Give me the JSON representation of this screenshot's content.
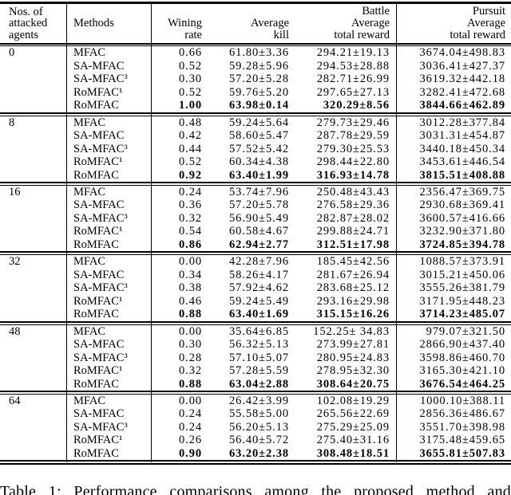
{
  "header": {
    "col1": "Nos. of\nattacked\nagents",
    "col2": "Methods",
    "col3": "Wining\nrate",
    "col4": "Average\nkill",
    "col5": "Battle\nAverage\ntotal reward",
    "col6": "Pursuit\nAverage\ntotal reward"
  },
  "table": {
    "groups": [
      {
        "attacked": "0",
        "rows": [
          {
            "method": "MFAC",
            "win": "0.66",
            "kill": "61.80±3.36",
            "battle": "294.21±19.13",
            "pursuit": "3674.04±498.83",
            "bold": false
          },
          {
            "method": "SA-MFAC",
            "win": "0.52",
            "kill": "59.28±5.96",
            "battle": "294.53±28.88",
            "pursuit": "3036.41±427.37",
            "bold": false
          },
          {
            "method": "SA-MFAC³",
            "win": "0.30",
            "kill": "57.20±5.28",
            "battle": "282.71±26.99",
            "pursuit": "3619.32±442.18",
            "bold": false
          },
          {
            "method": "RoMFAC¹",
            "win": "0.52",
            "kill": "59.76±5.20",
            "battle": "297.65±27.13",
            "pursuit": "3282.41±472.68",
            "bold": false
          },
          {
            "method": "RoMFAC",
            "win": "1.00",
            "kill": "63.98±0.14",
            "battle": "320.29±8.56",
            "pursuit": "3844.66±462.89",
            "bold": true
          }
        ]
      },
      {
        "attacked": "8",
        "rows": [
          {
            "method": "MFAC",
            "win": "0.48",
            "kill": "59.24±5.64",
            "battle": "279.73±29.46",
            "pursuit": "3012.28±377.84",
            "bold": false
          },
          {
            "method": "SA-MFAC",
            "win": "0.42",
            "kill": "58.60±5.47",
            "battle": "287.78±29.59",
            "pursuit": "3031.31±454.87",
            "bold": false
          },
          {
            "method": "SA-MFAC³",
            "win": "0.44",
            "kill": "57.52±5.42",
            "battle": "279.30±25.53",
            "pursuit": "3440.18±450.34",
            "bold": false
          },
          {
            "method": "RoMFAC¹",
            "win": "0.52",
            "kill": "60.34±4.38",
            "battle": "298.44±22.80",
            "pursuit": "3453.61±446.54",
            "bold": false
          },
          {
            "method": "RoMFAC",
            "win": "0.92",
            "kill": "63.40±1.99",
            "battle": "316.93±14.78",
            "pursuit": "3815.51±408.88",
            "bold": true
          }
        ]
      },
      {
        "attacked": "16",
        "rows": [
          {
            "method": "MFAC",
            "win": "0.24",
            "kill": "53.74±7.96",
            "battle": "250.48±43.43",
            "pursuit": "2356.47±369.75",
            "bold": false
          },
          {
            "method": "SA-MFAC",
            "win": "0.36",
            "kill": "57.20±5.78",
            "battle": "276.58±29.36",
            "pursuit": "2930.68±369.41",
            "bold": false
          },
          {
            "method": "SA-MFAC³",
            "win": "0.32",
            "kill": "56.90±5.49",
            "battle": "282.87±28.02",
            "pursuit": "3600.57±416.66",
            "bold": false
          },
          {
            "method": "RoMFAC¹",
            "win": "0.54",
            "kill": "60.58±4.67",
            "battle": "299.88±24.71",
            "pursuit": "3232.90±371.80",
            "bold": false
          },
          {
            "method": "RoMFAC",
            "win": "0.86",
            "kill": "62.94±2.77",
            "battle": "312.51±17.98",
            "pursuit": "3724.85±394.78",
            "bold": true
          }
        ]
      },
      {
        "attacked": "32",
        "rows": [
          {
            "method": "MFAC",
            "win": "0.00",
            "kill": "42.28±7.96",
            "battle": "185.45±42.56",
            "pursuit": "1088.57±373.91",
            "bold": false
          },
          {
            "method": "SA-MFAC",
            "win": "0.34",
            "kill": "58.26±4.17",
            "battle": "281.67±26.94",
            "pursuit": "3015.21±450.06",
            "bold": false
          },
          {
            "method": "SA-MFAC³",
            "win": "0.38",
            "kill": "57.92±4.62",
            "battle": "283.68±25.12",
            "pursuit": "3555.26±381.79",
            "bold": false
          },
          {
            "method": "RoMFAC¹",
            "win": "0.46",
            "kill": "59.24±5.49",
            "battle": "293.16±29.98",
            "pursuit": "3171.95±448.23",
            "bold": false
          },
          {
            "method": "RoMFAC",
            "win": "0.88",
            "kill": "63.40±1.69",
            "battle": "315.15±16.26",
            "pursuit": "3714.23±485.07",
            "bold": true
          }
        ]
      },
      {
        "attacked": "48",
        "rows": [
          {
            "method": "MFAC",
            "win": "0.00",
            "kill": "35.64±6.85",
            "battle": "152.25± 34.83",
            "pursuit": "979.07±321.50",
            "bold": false
          },
          {
            "method": "SA-MFAC",
            "win": "0.30",
            "kill": "56.32±5.13",
            "battle": "273.99±27.81",
            "pursuit": "2866.90±437.40",
            "bold": false
          },
          {
            "method": "SA-MFAC³",
            "win": "0.28",
            "kill": "57.10±5.07",
            "battle": "280.95±24.83",
            "pursuit": "3598.86±460.70",
            "bold": false
          },
          {
            "method": "RoMFAC¹",
            "win": "0.32",
            "kill": "57.28±5.59",
            "battle": "278.95±32.30",
            "pursuit": "3165.30±421.10",
            "bold": false
          },
          {
            "method": "RoMFAC",
            "win": "0.88",
            "kill": "63.04±2.88",
            "battle": "308.64±20.75",
            "pursuit": "3676.54±464.25",
            "bold": true
          }
        ]
      },
      {
        "attacked": "64",
        "rows": [
          {
            "method": "MFAC",
            "win": "0.00",
            "kill": "26.42±3.99",
            "battle": "102.08±19.29",
            "pursuit": "1000.10±388.11",
            "bold": false
          },
          {
            "method": "SA-MFAC",
            "win": "0.24",
            "kill": "55.58±5.00",
            "battle": "265.56±22.69",
            "pursuit": "2856.36±486.67",
            "bold": false
          },
          {
            "method": "SA-MFAC³",
            "win": "0.24",
            "kill": "56.20±5.13",
            "battle": "275.29±25.09",
            "pursuit": "3551.70±398.98",
            "bold": false
          },
          {
            "method": "RoMFAC¹",
            "win": "0.26",
            "kill": "56.40±5.72",
            "battle": "275.40±31.16",
            "pursuit": "3175.48±459.65",
            "bold": false
          },
          {
            "method": "RoMFAC",
            "win": "0.90",
            "kill": "63.20±2.38",
            "battle": "308.48±18.51",
            "pursuit": "3655.81±507.83",
            "bold": true
          }
        ]
      }
    ]
  },
  "caption": "Table 1: Performance comparisons among the proposed method and"
}
